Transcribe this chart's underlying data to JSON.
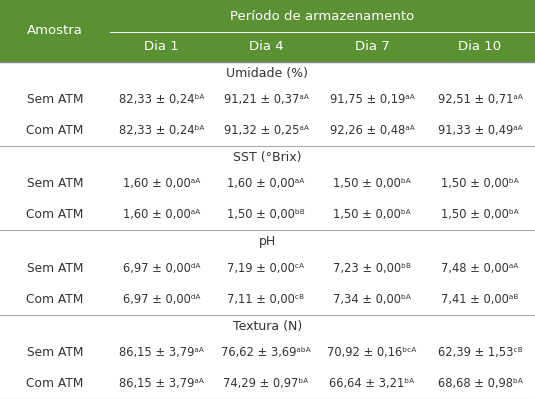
{
  "header_bg": "#5a9132",
  "header_text_color": "#ffffff",
  "cell_bg": "#ffffff",
  "cell_text_color": "#333333",
  "sep_color": "#aaaaaa",
  "title_row": "Período de armazenamento",
  "col0_header": "Amostra",
  "col_headers": [
    "Dia 1",
    "Dia 4",
    "Dia 7",
    "Dia 10"
  ],
  "sections": [
    {
      "name": "Umidade (%)",
      "rows": [
        [
          "Sem ATM",
          "82,33 ± 0,24ᵇᴬ",
          "91,21 ± 0,37ᵃᴬ",
          "91,75 ± 0,19ᵃᴬ",
          "92,51 ± 0,71ᵃᴬ"
        ],
        [
          "Com ATM",
          "82,33 ± 0,24ᵇᴬ",
          "91,32 ± 0,25ᵃᴬ",
          "92,26 ± 0,48ᵃᴬ",
          "91,33 ± 0,49ᵃᴬ"
        ]
      ]
    },
    {
      "name": "SST (°Brix)",
      "rows": [
        [
          "Sem ATM",
          "1,60 ± 0,00ᵃᴬ",
          "1,60 ± 0,00ᵃᴬ",
          "1,50 ± 0,00ᵇᴬ",
          "1,50 ± 0,00ᵇᴬ"
        ],
        [
          "Com ATM",
          "1,60 ± 0,00ᵃᴬ",
          "1,50 ± 0,00ᵇᴮ",
          "1,50 ± 0,00ᵇᴬ",
          "1,50 ± 0,00ᵇᴬ"
        ]
      ]
    },
    {
      "name": "pH",
      "rows": [
        [
          "Sem ATM",
          "6,97 ± 0,00ᵈᴬ",
          "7,19 ± 0,00ᶜᴬ",
          "7,23 ± 0,00ᵇᴮ",
          "7,48 ± 0,00ᵃᴬ"
        ],
        [
          "Com ATM",
          "6,97 ± 0,00ᵈᴬ",
          "7,11 ± 0,00ᶜᴮ",
          "7,34 ± 0,00ᵇᴬ",
          "7,41 ± 0,00ᵃᴮ"
        ]
      ]
    },
    {
      "name": "Textura (N)",
      "rows": [
        [
          "Sem ATM",
          "86,15 ± 3,79ᵃᴬ",
          "76,62 ± 3,69ᵃᵇᴬ",
          "70,92 ± 0,16ᵇᶜᴬ",
          "62,39 ± 1,53ᶜᴮ"
        ],
        [
          "Com ATM",
          "86,15 ± 3,79ᵃᴬ",
          "74,29 ± 0,97ᵇᴬ",
          "66,64 ± 3,21ᵇᴬ",
          "68,68 ± 0,98ᵇᴬ"
        ]
      ]
    }
  ],
  "figsize": [
    5.35,
    3.99
  ],
  "dpi": 100
}
